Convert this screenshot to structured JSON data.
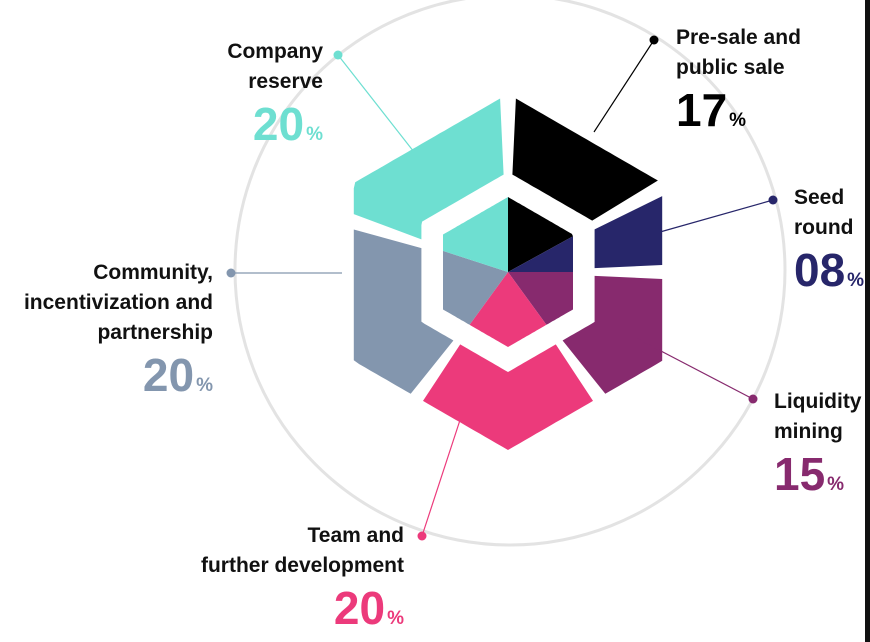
{
  "chart_data": {
    "type": "pie",
    "unit": "%",
    "slices": [
      {
        "label": "Pre-sale and public sale",
        "lines": [
          "Pre-sale and",
          "public sale"
        ],
        "value": 17,
        "display": "17",
        "color": "#000000",
        "label_color": "#000000"
      },
      {
        "label": "Seed round",
        "lines": [
          "Seed",
          "round"
        ],
        "value": 8,
        "display": "08",
        "color": "#27266a",
        "label_color": "#27266a"
      },
      {
        "label": "Liquidity mining",
        "lines": [
          "Liquidity",
          "mining"
        ],
        "value": 15,
        "display": "15",
        "color": "#872a6e",
        "label_color": "#872a6e"
      },
      {
        "label": "Team and further development",
        "lines": [
          "Team and",
          "further development"
        ],
        "value": 20,
        "display": "20",
        "color": "#ec3a7b",
        "label_color": "#ec3a7b"
      },
      {
        "label": "Community, incentivization and partnership",
        "lines": [
          "Community,",
          "incentivization and",
          "partnership"
        ],
        "value": 20,
        "display": "20",
        "color": "#8396ae",
        "label_color": "#8396ae"
      },
      {
        "label": "Company reserve",
        "lines": [
          "Company",
          "reserve"
        ],
        "value": 20,
        "display": "20",
        "color": "#6edfd1",
        "label_color": "#6edfd1"
      }
    ]
  }
}
